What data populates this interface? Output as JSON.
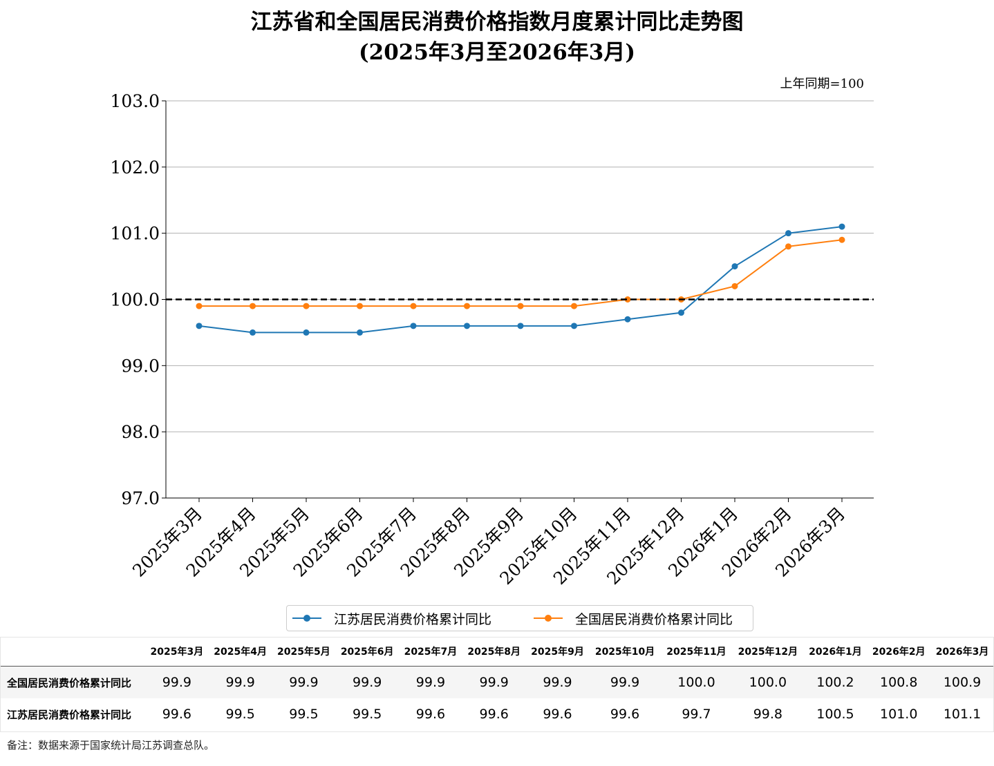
{
  "title_line1": "江苏省和全国居民消费价格指数月度累计同比走势图",
  "title_line2": "(2025年3月至2026年3月)",
  "unit_note": "上年同期=100",
  "footnote": "备注：数据来源于国家统计局江苏调查总队。",
  "chart_data": {
    "type": "line",
    "categories": [
      "2025年3月",
      "2025年4月",
      "2025年5月",
      "2025年6月",
      "2025年7月",
      "2025年8月",
      "2025年9月",
      "2025年10月",
      "2025年11月",
      "2025年12月",
      "2026年1月",
      "2026年2月",
      "2026年3月"
    ],
    "series": [
      {
        "name": "江苏居民消费价格累计同比",
        "color": "#1f77b4",
        "values": [
          99.6,
          99.5,
          99.5,
          99.5,
          99.6,
          99.6,
          99.6,
          99.6,
          99.7,
          99.8,
          100.5,
          101.0,
          101.1
        ]
      },
      {
        "name": "全国居民消费价格累计同比",
        "color": "#ff7f0e",
        "values": [
          99.9,
          99.9,
          99.9,
          99.9,
          99.9,
          99.9,
          99.9,
          99.9,
          100.0,
          100.0,
          100.2,
          100.8,
          100.9
        ]
      }
    ],
    "ylim": [
      97.0,
      103.0
    ],
    "yticks": [
      "97.0",
      "98.0",
      "99.0",
      "100.0",
      "101.0",
      "102.0",
      "103.0"
    ],
    "reference_line": 100.0,
    "grid": "horizontal",
    "legend_position": "bottom-center"
  },
  "table": {
    "rows": [
      {
        "label": "全国居民消费价格累计同比",
        "values": [
          "99.9",
          "99.9",
          "99.9",
          "99.9",
          "99.9",
          "99.9",
          "99.9",
          "99.9",
          "100.0",
          "100.0",
          "100.2",
          "100.8",
          "100.9"
        ]
      },
      {
        "label": "江苏居民消费价格累计同比",
        "values": [
          "99.6",
          "99.5",
          "99.5",
          "99.5",
          "99.6",
          "99.6",
          "99.6",
          "99.6",
          "99.7",
          "99.8",
          "100.5",
          "101.0",
          "101.1"
        ]
      }
    ]
  }
}
